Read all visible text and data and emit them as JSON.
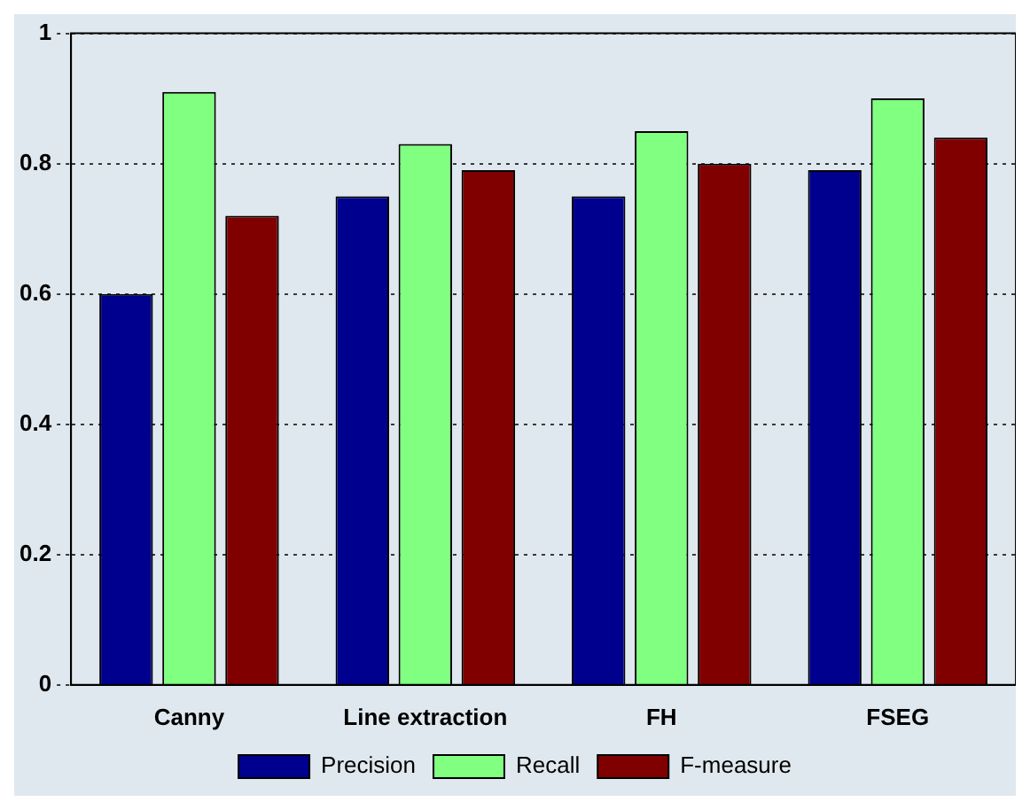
{
  "chart_data": {
    "type": "bar",
    "categories": [
      "Canny",
      "Line extraction",
      "FH",
      "FSEG"
    ],
    "series": [
      {
        "name": "Precision",
        "color": "#00008f",
        "values": [
          0.6,
          0.75,
          0.75,
          0.79
        ]
      },
      {
        "name": "Recall",
        "color": "#80ff80",
        "values": [
          0.91,
          0.83,
          0.85,
          0.9
        ]
      },
      {
        "name": "F-measure",
        "color": "#800000",
        "values": [
          0.72,
          0.79,
          0.8,
          0.84
        ]
      }
    ],
    "ylim": [
      0,
      1
    ],
    "yticks": [
      0,
      0.2,
      0.4,
      0.6,
      0.8,
      1
    ],
    "grid": "y",
    "legend": "bottom"
  }
}
